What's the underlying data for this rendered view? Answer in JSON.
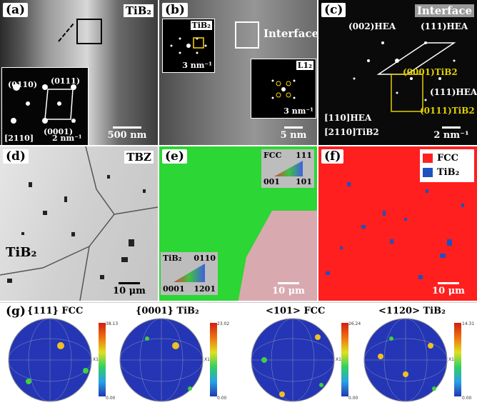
{
  "panel_a": {
    "label": "(a)",
    "title": "TiB₂",
    "inset_labels": [
      "(0110)",
      "(0111)",
      "(0001)",
      "[2110]"
    ],
    "inset_scale": "2 nm⁻¹",
    "scale": "500 nm"
  },
  "panel_b": {
    "label": "(b)",
    "inset1_title": "TiB₂",
    "inset1_scale": "3 nm⁻¹",
    "interface": "Interface",
    "inset2_title": "L1₂",
    "inset2_scale": "3 nm⁻¹",
    "scale": "5 nm"
  },
  "panel_c": {
    "label": "(c)",
    "title": "Interface",
    "labels": [
      "(002)HEA",
      "(111)HEA",
      "(0001)TiB2",
      "(111)HEA",
      "(0111)TiB2",
      "[110]HEA",
      "[2110]TiB2"
    ],
    "scale": "2 nm⁻¹"
  },
  "panel_d": {
    "label": "(d)",
    "title": "TBZ",
    "particle": "TiB₂",
    "scale": "10 μm"
  },
  "panel_e": {
    "label": "(e)",
    "fcc_key": {
      "title": "FCC",
      "corners": [
        "111",
        "001",
        "101"
      ]
    },
    "tib2_key": {
      "title": "TiB₂",
      "corners": [
        "0110",
        "0001",
        "1201"
      ]
    },
    "scale": "10 μm"
  },
  "panel_f": {
    "label": "(f)",
    "legend": [
      {
        "name": "FCC",
        "color": "#ff2020"
      },
      {
        "name": "TiB₂",
        "color": "#2050c0"
      }
    ],
    "scale": "10 μm"
  },
  "panel_g": {
    "label": "(g)",
    "figures": [
      {
        "title": "{111} FCC",
        "max": "38.13",
        "min": "0.00"
      },
      {
        "title": "{0001} TiB₂",
        "max": "23.02",
        "min": "0.00"
      },
      {
        "title": "<101> FCC",
        "max": "26.24",
        "min": "0.00"
      },
      {
        "title": "<1120> TiB₂",
        "max": "14.31",
        "min": "0.00"
      }
    ],
    "axis": "X1"
  }
}
